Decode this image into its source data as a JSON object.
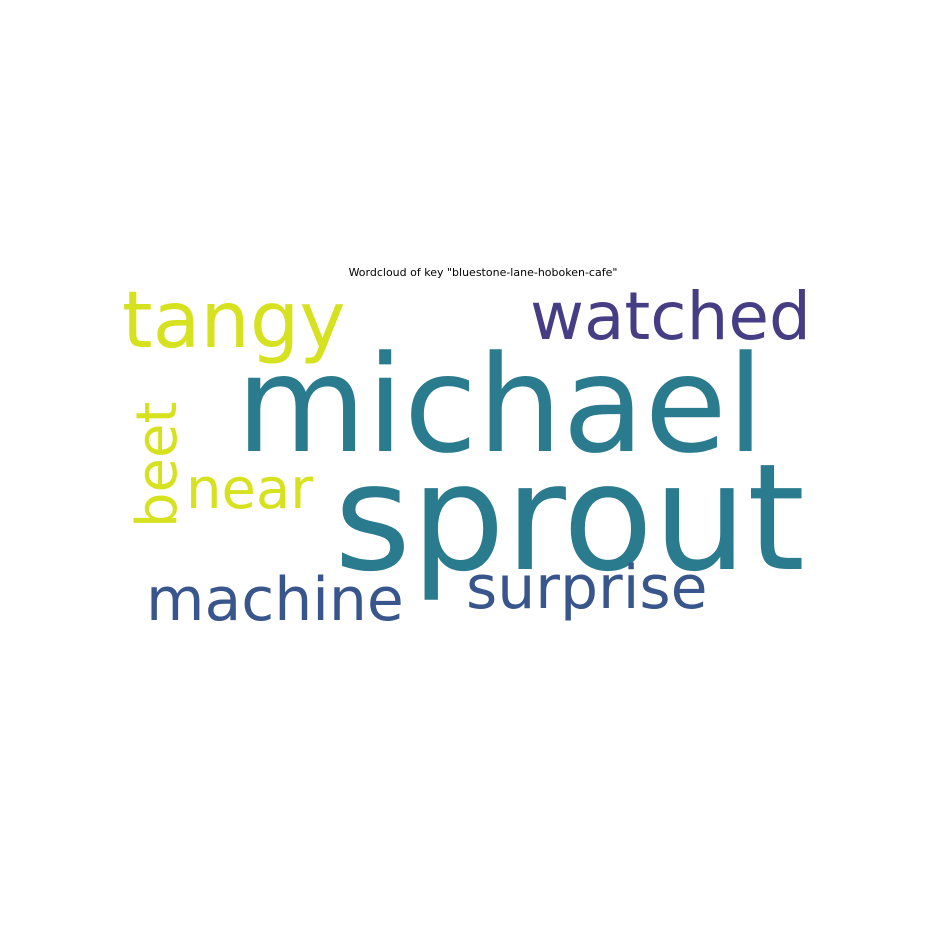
{
  "figure": {
    "title": "Wordcloud of key \"bluestone-lane-hoboken-cafe\""
  },
  "wordcloud": {
    "words": [
      {
        "text": "michael",
        "color": "#2a7b8e"
      },
      {
        "text": "sprout",
        "color": "#2a7b8e"
      },
      {
        "text": "tangy",
        "color": "#d6e21f"
      },
      {
        "text": "watched",
        "color": "#453e84"
      },
      {
        "text": "beet",
        "color": "#d6e21f"
      },
      {
        "text": "near",
        "color": "#d6e21f"
      },
      {
        "text": "machine",
        "color": "#39568c"
      },
      {
        "text": "surprise",
        "color": "#39568c"
      }
    ]
  }
}
